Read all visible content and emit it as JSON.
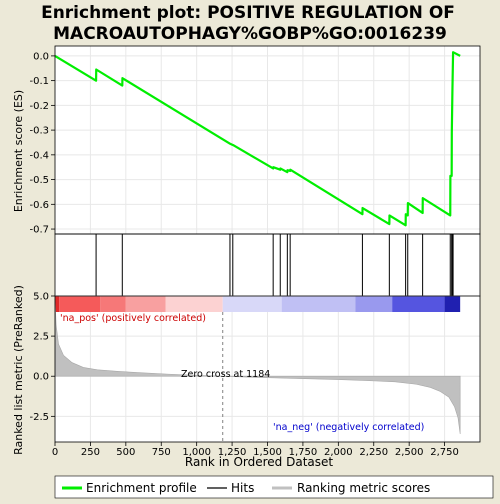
{
  "chart_data": {
    "type": "line",
    "title_line1": "Enrichment plot: POSITIVE REGULATION OF",
    "title_line2": "MACROAUTOPHAGY%GOBP%GO:0016239",
    "es_ylabel": "Enrichment score (ES)",
    "metric_ylabel": "Ranked list metric (PreRanked)",
    "xlabel": "Rank in Ordered Dataset",
    "es_ylim": [
      -0.72,
      0.04
    ],
    "es_yticks": [
      0.0,
      -0.1,
      -0.2,
      -0.3,
      -0.4,
      -0.5,
      -0.6,
      -0.7
    ],
    "es_ytick_labels": [
      "0.0",
      "-0.1",
      "-0.2",
      "-0.3",
      "-0.4",
      "-0.5",
      "-0.6",
      "-0.7"
    ],
    "xlim": [
      0,
      3000
    ],
    "xticks": [
      0,
      250,
      500,
      750,
      1000,
      1250,
      1500,
      1750,
      2000,
      2250,
      2500,
      2750
    ],
    "xtick_labels": [
      "0",
      "250",
      "500",
      "750",
      "1,000",
      "1,250",
      "1,500",
      "1,750",
      "2,000",
      "2,250",
      "2,500",
      "2,750"
    ],
    "metric_ylim": [
      -4.1,
      5.0
    ],
    "metric_yticks": [
      5.0,
      2.5,
      0.0,
      -2.5
    ],
    "metric_ytick_labels": [
      "5.0",
      "2.5",
      "0.0",
      "-2.5"
    ],
    "zero_cross_rank": 1184,
    "zero_cross_label": "Zero cross at 1184",
    "na_pos_label": "'na_pos' (positively correlated)",
    "na_neg_label": "'na_neg' (negatively correlated)",
    "hits": [
      290,
      475,
      1235,
      1255,
      1540,
      1590,
      1640,
      1660,
      2170,
      2360,
      2475,
      2490,
      2595,
      2790,
      2800,
      2805,
      2810
    ],
    "es_curve": [
      [
        0,
        0.0
      ],
      [
        290,
        -0.1
      ],
      [
        291,
        -0.055
      ],
      [
        475,
        -0.12
      ],
      [
        476,
        -0.09
      ],
      [
        1235,
        -0.355
      ],
      [
        1236,
        -0.355
      ],
      [
        1255,
        -0.36
      ],
      [
        1256,
        -0.36
      ],
      [
        1540,
        -0.455
      ],
      [
        1541,
        -0.45
      ],
      [
        1590,
        -0.46
      ],
      [
        1591,
        -0.455
      ],
      [
        1640,
        -0.47
      ],
      [
        1641,
        -0.462
      ],
      [
        1660,
        -0.465
      ],
      [
        1661,
        -0.46
      ],
      [
        2170,
        -0.64
      ],
      [
        2171,
        -0.615
      ],
      [
        2360,
        -0.68
      ],
      [
        2361,
        -0.645
      ],
      [
        2475,
        -0.685
      ],
      [
        2476,
        -0.64
      ],
      [
        2490,
        -0.645
      ],
      [
        2491,
        -0.595
      ],
      [
        2595,
        -0.635
      ],
      [
        2596,
        -0.575
      ],
      [
        2790,
        -0.645
      ],
      [
        2791,
        -0.485
      ],
      [
        2800,
        -0.485
      ],
      [
        2801,
        -0.31
      ],
      [
        2805,
        -0.15
      ],
      [
        2810,
        0.015
      ],
      [
        2860,
        0.0
      ]
    ],
    "metric_curve": [
      [
        0,
        4.9
      ],
      [
        8,
        3.2
      ],
      [
        25,
        2.0
      ],
      [
        60,
        1.3
      ],
      [
        120,
        0.85
      ],
      [
        200,
        0.55
      ],
      [
        300,
        0.4
      ],
      [
        450,
        0.3
      ],
      [
        600,
        0.22
      ],
      [
        800,
        0.13
      ],
      [
        1000,
        0.06
      ],
      [
        1184,
        0.0
      ],
      [
        1400,
        -0.07
      ],
      [
        1700,
        -0.14
      ],
      [
        2000,
        -0.21
      ],
      [
        2200,
        -0.27
      ],
      [
        2400,
        -0.35
      ],
      [
        2550,
        -0.5
      ],
      [
        2650,
        -0.7
      ],
      [
        2720,
        -0.95
      ],
      [
        2780,
        -1.3
      ],
      [
        2820,
        -1.9
      ],
      [
        2845,
        -2.6
      ],
      [
        2860,
        -3.6
      ]
    ],
    "legend": [
      "Enrichment profile",
      "Hits",
      "Ranking metric scores"
    ],
    "colors": {
      "es_line": "#00ee00",
      "hit": "#000000",
      "metric_fill": "#c0c0c0",
      "zero_cross": "#808080",
      "na_pos_text": "#cc0000",
      "na_neg_text": "#0000cc",
      "grid": "#e8e8e8"
    },
    "heat_bands": [
      {
        "x0": 0,
        "x1": 30,
        "color": "#e02828"
      },
      {
        "x0": 30,
        "x1": 320,
        "color": "#f55a5a"
      },
      {
        "x0": 320,
        "x1": 500,
        "color": "#f67878"
      },
      {
        "x0": 500,
        "x1": 780,
        "color": "#f8a0a0"
      },
      {
        "x0": 780,
        "x1": 1184,
        "color": "#fcd2d2"
      },
      {
        "x0": 1184,
        "x1": 1600,
        "color": "#d8d8f8"
      },
      {
        "x0": 1600,
        "x1": 2120,
        "color": "#c0c0f4"
      },
      {
        "x0": 2120,
        "x1": 2380,
        "color": "#9999ee"
      },
      {
        "x0": 2380,
        "x1": 2750,
        "color": "#5555e0"
      },
      {
        "x0": 2750,
        "x1": 2860,
        "color": "#2020b0"
      }
    ]
  }
}
